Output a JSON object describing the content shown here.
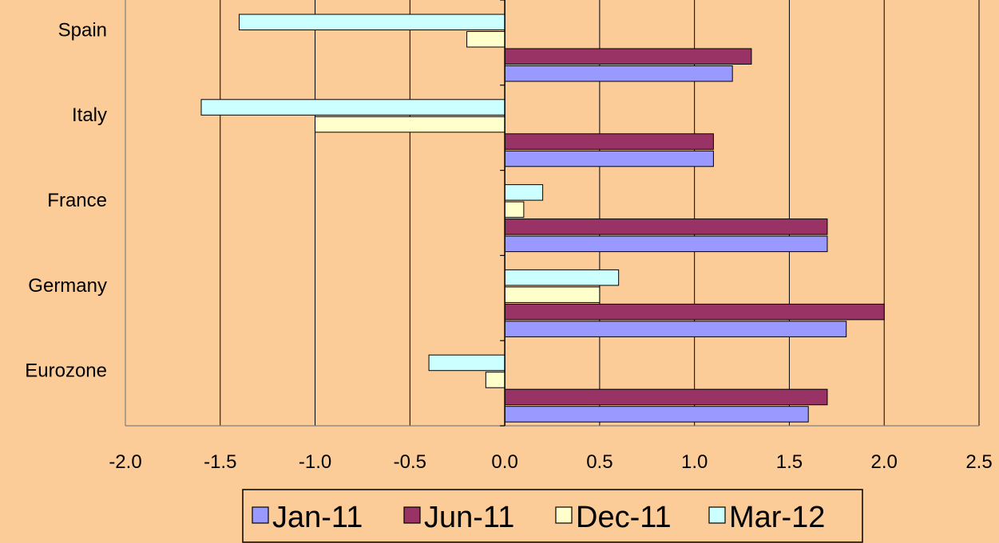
{
  "colors": {
    "background": "#FBCB98",
    "plot_border": "#808080",
    "gridline": "#000000",
    "bar_border": "#000000"
  },
  "chart_data": {
    "type": "bar",
    "orientation": "horizontal",
    "categories": [
      "Eurozone",
      "Germany",
      "France",
      "Italy",
      "Spain"
    ],
    "series": [
      {
        "name": "Jan-11",
        "color": "#9999FF",
        "values": [
          1.6,
          1.8,
          1.7,
          1.1,
          1.2
        ]
      },
      {
        "name": "Jun-11",
        "color": "#993366",
        "values": [
          1.7,
          2.0,
          1.7,
          1.1,
          1.3
        ]
      },
      {
        "name": "Dec-11",
        "color": "#FFFFCC",
        "values": [
          -0.1,
          0.5,
          0.1,
          -1.0,
          -0.2
        ]
      },
      {
        "name": "Mar-12",
        "color": "#CCFFFF",
        "values": [
          -0.4,
          0.6,
          0.2,
          -1.6,
          -1.4
        ]
      }
    ],
    "xlim": [
      -2.0,
      2.5
    ],
    "xticks": [
      "-2.0",
      "-1.5",
      "-1.0",
      "-0.5",
      "0.0",
      "0.5",
      "1.0",
      "1.5",
      "2.0",
      "2.5"
    ],
    "title": "",
    "xlabel": "",
    "ylabel": "",
    "grid": "vertical major gridlines",
    "legend_position": "bottom"
  }
}
